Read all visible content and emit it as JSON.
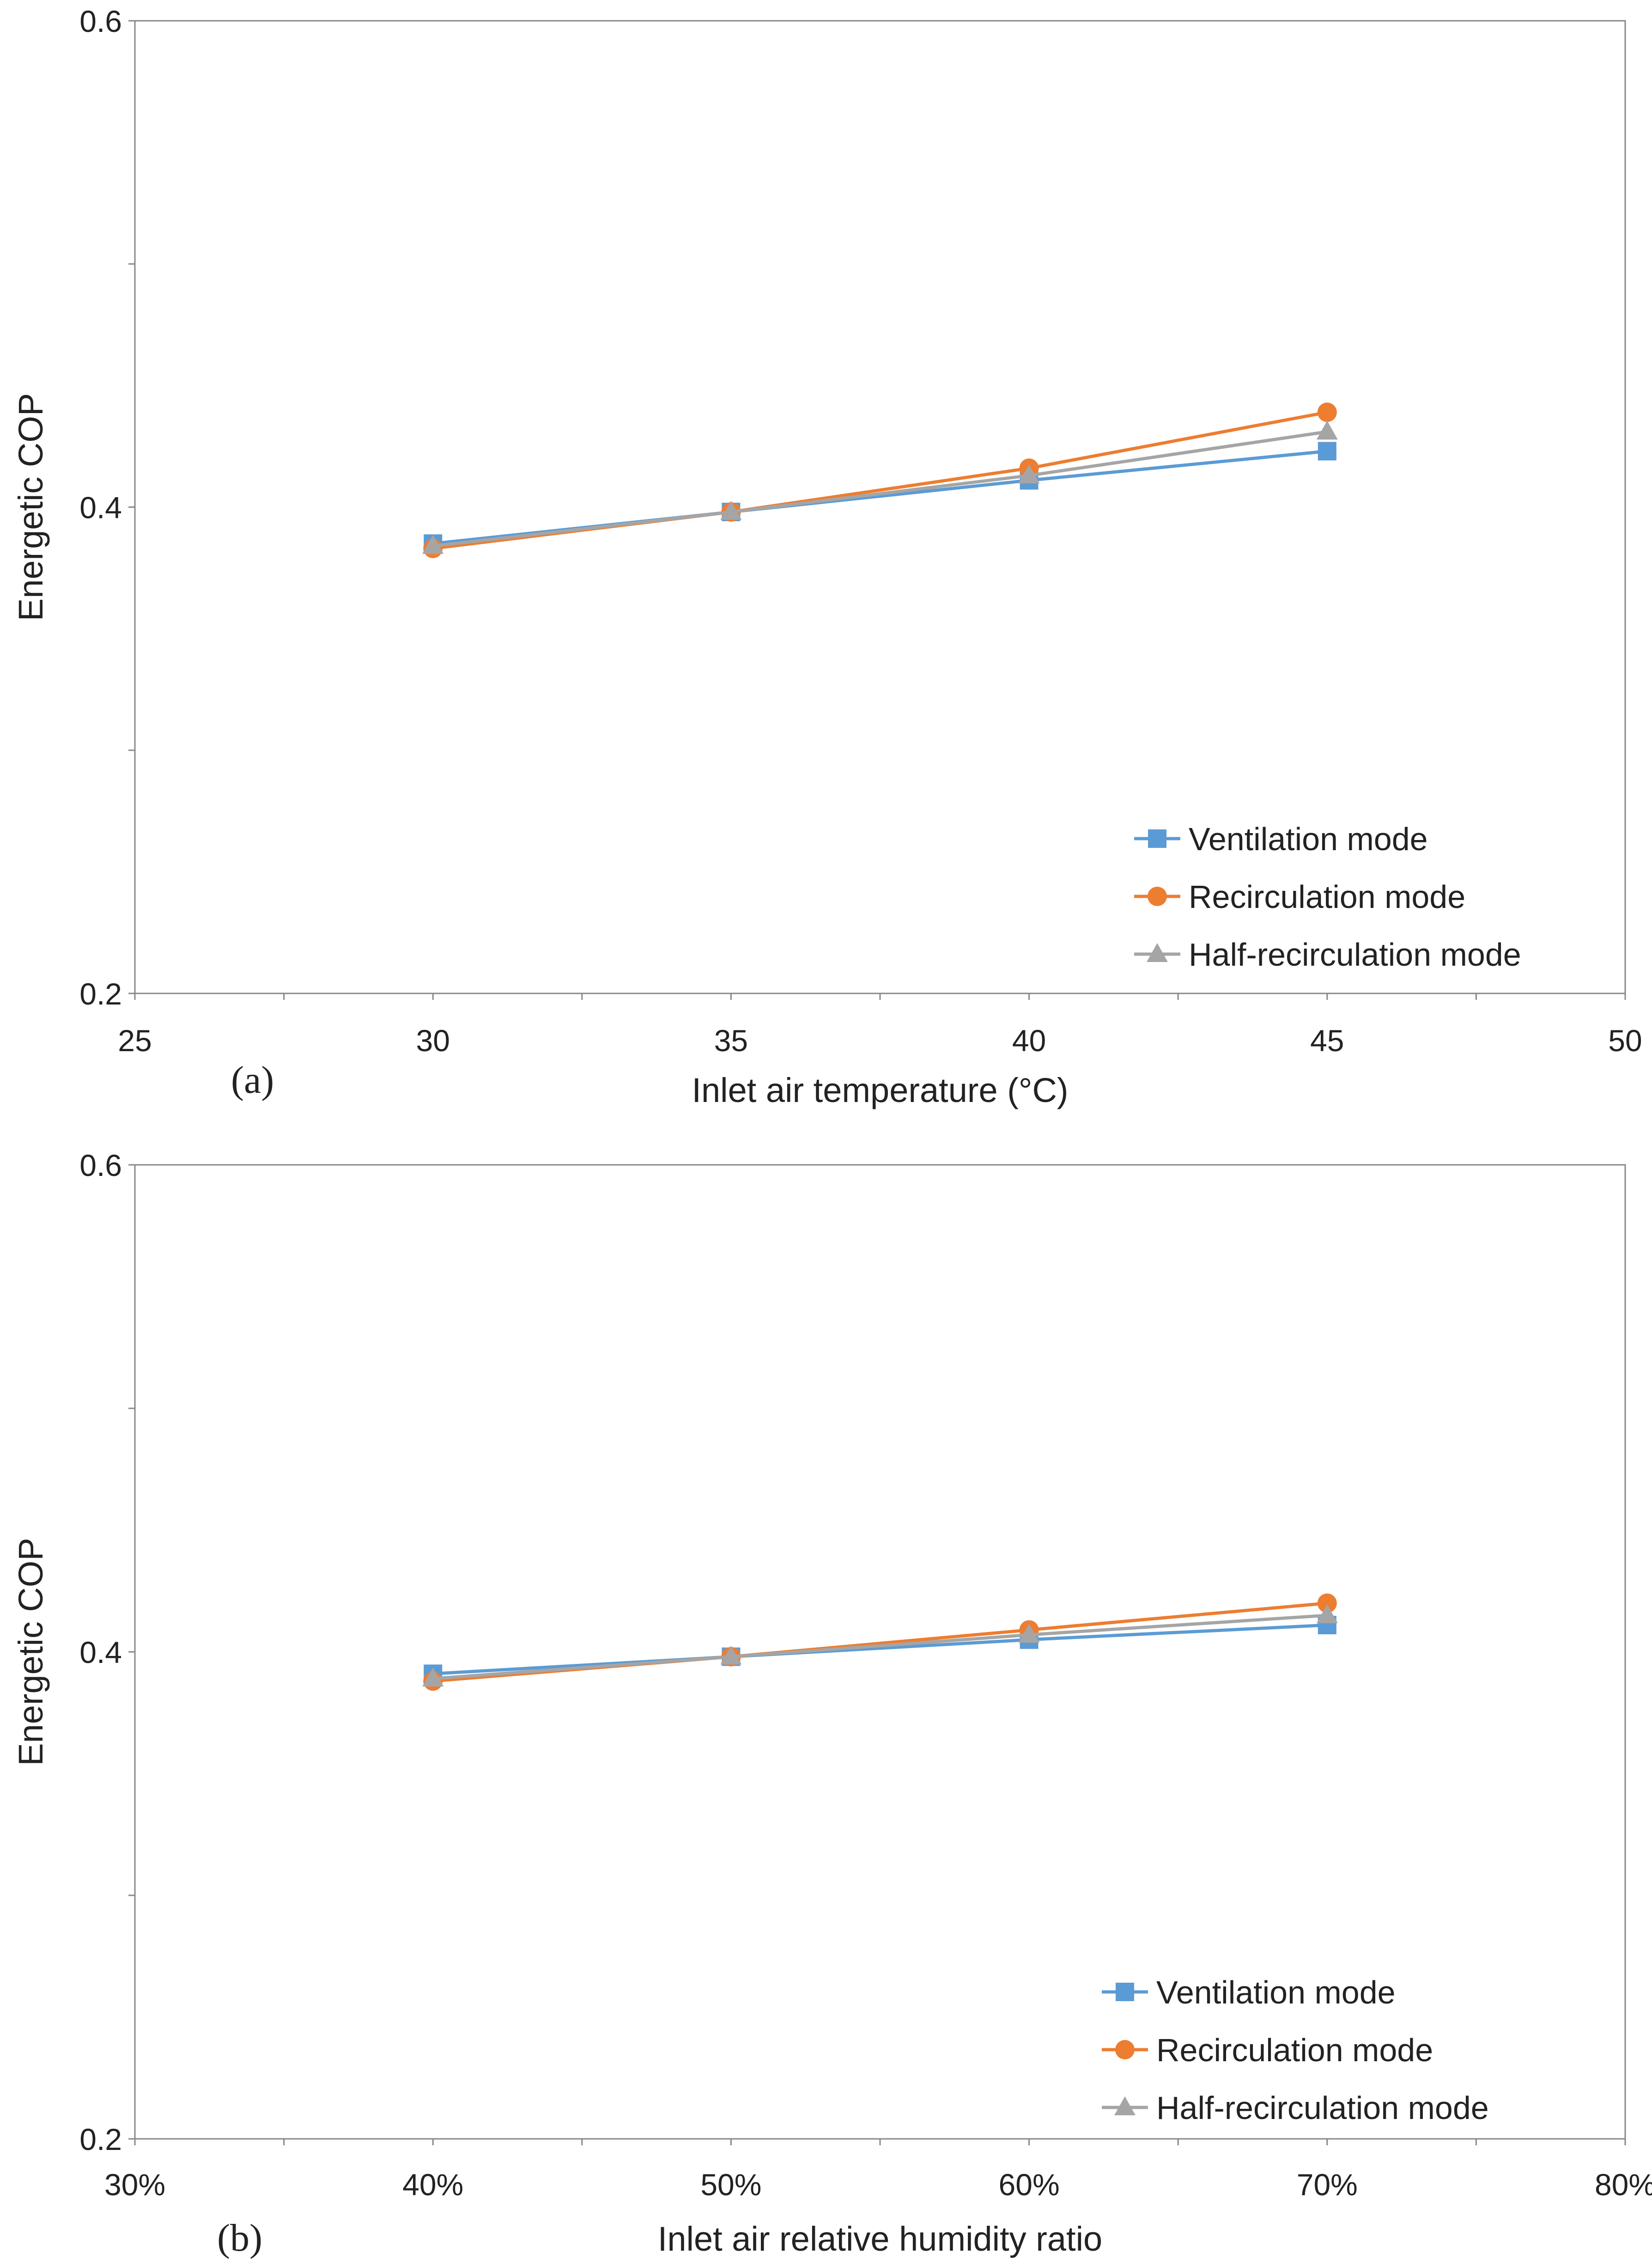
{
  "chart_data": [
    {
      "type": "line",
      "panel_label": "(a)",
      "title": "",
      "xlabel": "Inlet air temperature (°C)",
      "ylabel": "Energetic COP",
      "xlim": [
        25,
        50
      ],
      "ylim": [
        0.2,
        0.6
      ],
      "x_ticks": [
        25,
        30,
        35,
        40,
        45,
        50
      ],
      "x_tick_labels": [
        "25",
        "30",
        "35",
        "40",
        "45",
        "50"
      ],
      "y_ticks": [
        0.2,
        0.4,
        0.6
      ],
      "y_tick_labels": [
        "0.2",
        "0.4",
        "0.6"
      ],
      "grid": false,
      "legend_position": "bottom-right",
      "x": [
        30,
        35,
        40,
        45
      ],
      "series": [
        {
          "name": "Ventilation mode",
          "color": "#5B9BD5",
          "marker": "square",
          "values": [
            0.385,
            0.398,
            0.411,
            0.423
          ]
        },
        {
          "name": "Recirculation mode",
          "color": "#ED7D31",
          "marker": "circle",
          "values": [
            0.383,
            0.398,
            0.416,
            0.439
          ]
        },
        {
          "name": "Half-recirculation mode",
          "color": "#A5A5A5",
          "marker": "triangle",
          "values": [
            0.384,
            0.398,
            0.413,
            0.431
          ]
        }
      ]
    },
    {
      "type": "line",
      "panel_label": "(b)",
      "title": "",
      "xlabel": "Inlet air relative humidity ratio",
      "ylabel": "Energetic COP",
      "xlim": [
        30,
        80
      ],
      "ylim": [
        0.2,
        0.6
      ],
      "x_ticks": [
        30,
        40,
        50,
        60,
        70,
        80
      ],
      "x_tick_labels": [
        "30%",
        "40%",
        "50%",
        "60%",
        "70%",
        "80%"
      ],
      "y_ticks": [
        0.2,
        0.4,
        0.6
      ],
      "y_tick_labels": [
        "0.2",
        "0.4",
        "0.6"
      ],
      "grid": false,
      "legend_position": "bottom-right",
      "x": [
        40,
        50,
        60,
        70
      ],
      "series": [
        {
          "name": "Ventilation mode",
          "color": "#5B9BD5",
          "marker": "square",
          "values": [
            0.391,
            0.398,
            0.405,
            0.411
          ]
        },
        {
          "name": "Recirculation mode",
          "color": "#ED7D31",
          "marker": "circle",
          "values": [
            0.388,
            0.398,
            0.409,
            0.42
          ]
        },
        {
          "name": "Half-recirculation mode",
          "color": "#A5A5A5",
          "marker": "triangle",
          "values": [
            0.389,
            0.398,
            0.407,
            0.415
          ]
        }
      ]
    }
  ]
}
